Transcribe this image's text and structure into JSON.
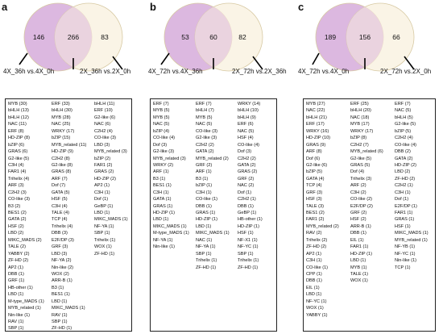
{
  "colors": {
    "left_circle": "#dcb8e0",
    "right_circle": "#f7ecd6",
    "overlap": "#ead3df",
    "outline": "#cfc8a0"
  },
  "panels": [
    {
      "letter": "a",
      "counts": {
        "left": "146",
        "overlap": "266",
        "right": "83"
      },
      "left_label": "4X_36h vs.4X_0h",
      "right_label": "2X_36h vs.2X_0h",
      "columns": [
        [
          "MYB (30)",
          "bHLH (13)",
          "bHLH (12)",
          "NAC (11)",
          "ERF (8)",
          "HD-ZIP (8)",
          "bZIP (6)",
          "GRAS (6)",
          "G2-like (5)",
          "C3H (4)",
          "FAR1 (4)",
          "Trihelix (4)",
          "ARF (3)",
          "C2H2 (3)",
          "CO-like (3)",
          "B3 (2)",
          "BES1 (2)",
          "GATA (2)",
          "HSF (2)",
          "LBD (2)",
          "MIKC_MADS (2)",
          "TALE (2)",
          "YABBY (2)",
          "ZF-HD (2)",
          "AP2 (1)",
          "DBB (1)",
          "GRF (1)",
          "HB-other (1)",
          "LBD (1)",
          "M-type_MADS (1)",
          "MYB_related (1)",
          "Nin-like (1)",
          "RAV (1)",
          "SBP (1)",
          "TCP (1)"
        ],
        [
          "ERF (33)",
          "bHLH (30)",
          "MYB (28)",
          "NAC (25)",
          "WRKY (17)",
          "bZIP (15)",
          "MYB_related (11)",
          "HD-ZIP (9)",
          "C2H2 (8)",
          "G2-like (8)",
          "GRAS (8)",
          "ARF (7)",
          "Dof (7)",
          "GATA (5)",
          "HSF (5)",
          "C3H (4)",
          "TALE (4)",
          "TCP (4)",
          "Trihelix (4)",
          "DBB (3)",
          "E2F/DP (3)",
          "GRF (3)",
          "LBD (3)",
          "NF-YA (2)",
          "Nin-like (2)",
          "WOX (2)",
          "ARR-B (1)",
          "B3 (1)",
          "BES1 (1)",
          "LBD (1)",
          "MIKC_MADS (1)",
          "RAV (1)",
          "SBP (1)",
          "ZF-HD (1)"
        ],
        [
          "bHLH (11)",
          "ERF (10)",
          "G2-like (6)",
          "NAC (6)",
          "C2H2 (4)",
          "CO-like (3)",
          "LBD (3)",
          "MYB_related (3)",
          "bZIP (2)",
          "FAR1 (2)",
          "GRAS (2)",
          "HD-ZIP (2)",
          "AP2 (1)",
          "C3H (1)",
          "Dof (1)",
          "GeBP (1)",
          "LBD (1)",
          "MIKC_MADS (1)",
          "NF-YA (1)",
          "SBP (1)",
          "Trihelix (1)",
          "WOX (1)",
          "ZF-HD (1)"
        ]
      ]
    },
    {
      "letter": "b",
      "counts": {
        "left": "53",
        "overlap": "60",
        "right": "82"
      },
      "left_label": "4X_72h vs.4X_36h",
      "right_label": "2X_72h vs.2X_36h",
      "columns": [
        [
          "ERF (7)",
          "MYB (5)",
          "MYB (5)",
          "NAC (5)",
          "bZIP (4)",
          "CO-like (4)",
          "Dof (3)",
          "G2-like (3)",
          "MYB_related (3)",
          "WRKY (2)",
          "ARF (1)",
          "B3 (1)",
          "BES1 (1)",
          "C3H (1)",
          "GATA (1)",
          "GRAS (1)",
          "HD-ZIP (1)",
          "LBD (1)",
          "MIKC_MADS (1)",
          "M-type_MADS (1)",
          "NF-YA (1)",
          "Nin-like (1)"
        ],
        [
          "ERF (7)",
          "bHLH (7)",
          "MYB (5)",
          "NAC (5)",
          "CO-like (3)",
          "G2-like (3)",
          "C2H2 (2)",
          "GATA (2)",
          "MYB_related (2)",
          "GRF (2)",
          "ARF (1)",
          "B3 (1)",
          "bZIP (1)",
          "C3H (1)",
          "CO-like (1)",
          "DBB (1)",
          "GRAS (1)",
          "HD-ZIP (1)",
          "LBD (1)",
          "MIKC_MADS (1)",
          "NAC (1)",
          "NF-YA (1)",
          "SBP (1)",
          "Trihelix (1)",
          "ZF-HD (1)"
        ],
        [
          "WRKY (14)",
          "bHLH (10)",
          "bHLH (9)",
          "ERF (6)",
          "NAC (5)",
          "HSF (4)",
          "CO-like (4)",
          "Dof (3)",
          "C2H2 (2)",
          "GATA (2)",
          "GRAS (2)",
          "GRF (2)",
          "NAC (2)",
          "Dof (1)",
          "C2H2 (1)",
          "DBB (1)",
          "GeBP (1)",
          "HB-other (1)",
          "HD-ZIP (1)",
          "HSF (1)",
          "NF-X1 (1)",
          "NF-YC (1)",
          "SBP (1)",
          "Trihelix (1)",
          "ZF-HD (1)"
        ]
      ]
    },
    {
      "letter": "c",
      "counts": {
        "left": "189",
        "overlap": "156",
        "right": "66"
      },
      "left_label": "4X_72h vs.4X_0h",
      "right_label": "2X_72h vs.2X_0h",
      "columns": [
        [
          "MYB (27)",
          "NAC (22)",
          "bHLH (21)",
          "ERF (17)",
          "WRKY (16)",
          "HD-ZIP (10)",
          "GRAS (9)",
          "ARF (8)",
          "Dof (6)",
          "G2-like (6)",
          "bZIP (5)",
          "GATA (4)",
          "TCP (4)",
          "GRF (3)",
          "HSF (3)",
          "TALE (3)",
          "BES1 (2)",
          "FAR1 (2)",
          "MYB_related (2)",
          "RAV (2)",
          "Trihelix (2)",
          "ZF-HD (2)",
          "AP2 (1)",
          "C3H (1)",
          "CO-like (1)",
          "CPP (1)",
          "DBB (1)",
          "EIL (1)",
          "LBD (1)",
          "NF-YC (1)",
          "WOX (1)",
          "YABBY (1)"
        ],
        [
          "ERF (25)",
          "bHLH (20)",
          "NAC (18)",
          "MYB (17)",
          "WRKY (17)",
          "bZIP (8)",
          "C2H2 (7)",
          "MYB_related (6)",
          "G2-like (5)",
          "GRAS (5)",
          "Dof (4)",
          "Trihelix (3)",
          "ARF (2)",
          "C3H (2)",
          "CO-like (2)",
          "E2F/DP (2)",
          "GRF (2)",
          "HSF (2)",
          "ARR-B (1)",
          "DBB (1)",
          "EIL (1)",
          "FAR1 (1)",
          "HD-ZIP (1)",
          "LBD (1)",
          "MYB (1)",
          "TALE (1)",
          "WOX (1)"
        ],
        [
          "ERF (7)",
          "NAC (5)",
          "bHLH (5)",
          "G2-like (5)",
          "bZIP (5)",
          "C2H2 (4)",
          "CO-like (4)",
          "DBB (2)",
          "GATA (2)",
          "HD-ZIP (2)",
          "LBD (2)",
          "ZF-HD (2)",
          "C2H2 (1)",
          "C3H (1)",
          "Dof (1)",
          "E2F/DP (1)",
          "FAR1 (1)",
          "GRAS (1)",
          "HSF (1)",
          "MIKC_MADS (1)",
          "MYB_related (1)",
          "NF-YB (1)",
          "NF-YC (1)",
          "Nin-like (1)",
          "TCP (1)"
        ]
      ]
    }
  ]
}
